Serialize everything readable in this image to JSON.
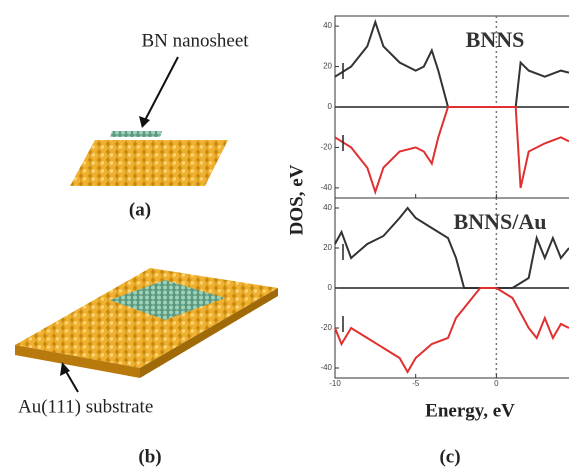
{
  "figure": {
    "a_label": "BN nanosheet",
    "a_caption": "(a)",
    "b_label": "Au(111) substrate",
    "b_caption": "(b)",
    "c_caption": "(c)",
    "ylabel": "DOS, eV",
    "xlabel": "Energy, eV"
  },
  "chart_data": [
    {
      "type": "line",
      "title": "BNNS",
      "x": [
        -10,
        -9,
        -8,
        -7.5,
        -7,
        -6,
        -5,
        -4.5,
        -4,
        -3.6,
        -3,
        1.2,
        1.5,
        2,
        3,
        4,
        4.5
      ],
      "series": [
        {
          "color": "#333333",
          "values": [
            15,
            20,
            30,
            42,
            30,
            22,
            18,
            20,
            28,
            18,
            0,
            0,
            22,
            18,
            15,
            18,
            17
          ]
        },
        {
          "color": "#e03030",
          "values": [
            -15,
            -20,
            -30,
            -42,
            -30,
            -22,
            -20,
            -22,
            -28,
            -15,
            0,
            0,
            -40,
            -22,
            -18,
            -15,
            -17
          ]
        }
      ],
      "xlim": [
        -10,
        4.5
      ],
      "xticks": [
        -10,
        -5,
        0
      ],
      "ylim": [
        -45,
        45
      ],
      "yticks": [
        40,
        20,
        0,
        -20,
        -40
      ]
    },
    {
      "type": "line",
      "title": "BNNS/Au",
      "x": [
        -10,
        -9.6,
        -9,
        -8,
        -7,
        -6,
        -5.5,
        -5,
        -4,
        -3,
        -2.5,
        -2,
        -1,
        0,
        1,
        2,
        2.5,
        3,
        3.5,
        4,
        4.5
      ],
      "series": [
        {
          "color": "#333333",
          "values": [
            22,
            28,
            15,
            22,
            26,
            35,
            40,
            35,
            30,
            25,
            15,
            0,
            0,
            0,
            0,
            5,
            25,
            15,
            25,
            15,
            20
          ]
        },
        {
          "color": "#e03030",
          "values": [
            -20,
            -28,
            -20,
            -25,
            -30,
            -35,
            -42,
            -35,
            -28,
            -25,
            -15,
            -10,
            0,
            0,
            -5,
            -20,
            -25,
            -15,
            -25,
            -18,
            -20
          ]
        }
      ],
      "xlim": [
        -10,
        4.5
      ],
      "xticks": [
        -10,
        -5,
        0
      ],
      "ylim": [
        -45,
        45
      ],
      "yticks": [
        40,
        20,
        0,
        -20,
        -40
      ]
    }
  ]
}
